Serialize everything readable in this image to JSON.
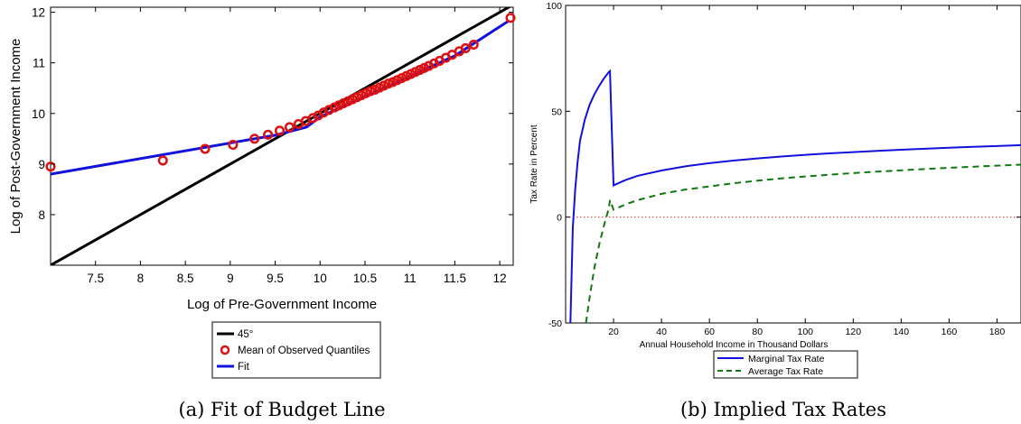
{
  "colors": {
    "black_line": "#000000",
    "marker_red": "#dd1111",
    "fit_blue": "#1111dd",
    "avg_green": "#117711",
    "zero_line": "#dd3333"
  },
  "chart_data": [
    {
      "type": "scatter",
      "caption": "(a) Fit of Budget Line",
      "xlabel": "Log of Pre-Government Income",
      "ylabel": "Log of Post-Government Income",
      "xlim": [
        7.0,
        12.15
      ],
      "ylim": [
        7.0,
        12.1
      ],
      "xticks": [
        7.5,
        8,
        8.5,
        9,
        9.5,
        10,
        10.5,
        11,
        11.5,
        12
      ],
      "yticks": [
        8,
        9,
        10,
        11,
        12
      ],
      "grid": false,
      "legend_placement": "below",
      "series": [
        {
          "name": "45°",
          "kind": "line",
          "x": [
            7.0,
            12.15
          ],
          "y": [
            7.0,
            12.15
          ]
        },
        {
          "name": "Mean of Observed Quantiles",
          "kind": "markers",
          "x": [
            7.0,
            8.25,
            8.72,
            9.03,
            9.27,
            9.42,
            9.55,
            9.66,
            9.76,
            9.84,
            9.92,
            9.98,
            10.04,
            10.1,
            10.16,
            10.21,
            10.26,
            10.31,
            10.36,
            10.41,
            10.46,
            10.51,
            10.56,
            10.61,
            10.66,
            10.71,
            10.76,
            10.81,
            10.86,
            10.91,
            10.96,
            11.01,
            11.06,
            11.11,
            11.16,
            11.21,
            11.27,
            11.33,
            11.4,
            11.47,
            11.55,
            11.62,
            11.71,
            12.12
          ],
          "y": [
            8.95,
            9.07,
            9.3,
            9.38,
            9.5,
            9.58,
            9.66,
            9.73,
            9.79,
            9.85,
            9.91,
            9.96,
            10.02,
            10.07,
            10.12,
            10.16,
            10.2,
            10.24,
            10.28,
            10.32,
            10.36,
            10.4,
            10.44,
            10.47,
            10.51,
            10.55,
            10.59,
            10.62,
            10.66,
            10.7,
            10.74,
            10.78,
            10.82,
            10.86,
            10.9,
            10.94,
            10.99,
            11.04,
            11.1,
            11.16,
            11.23,
            11.29,
            11.36,
            11.89
          ]
        },
        {
          "name": "Fit",
          "kind": "line",
          "x": [
            7.0,
            9.5,
            9.85,
            10.0,
            10.5,
            11.0,
            11.5,
            12.1
          ],
          "y": [
            8.8,
            9.57,
            9.73,
            9.93,
            10.33,
            10.74,
            11.14,
            11.83
          ]
        }
      ]
    },
    {
      "type": "line",
      "caption": "(b) Implied Tax Rates",
      "xlabel": "Annual Household Income in Thousand Dollars",
      "ylabel": "Tax Rate in Percent",
      "xlim": [
        0,
        190
      ],
      "ylim": [
        -50,
        100
      ],
      "xticks": [
        20,
        40,
        60,
        80,
        100,
        120,
        140,
        160,
        180
      ],
      "yticks": [
        -50,
        0,
        50,
        100
      ],
      "grid": false,
      "legend_placement": "below",
      "reference_line_y": 0,
      "series": [
        {
          "name": "Marginal Tax Rate",
          "style": "solid",
          "x": [
            2,
            3,
            4,
            5,
            6,
            8,
            10,
            12,
            14,
            16,
            18,
            18.5,
            20,
            25,
            30,
            40,
            50,
            60,
            70,
            80,
            90,
            100,
            110,
            120,
            130,
            140,
            150,
            160,
            170,
            180,
            190
          ],
          "y": [
            -50,
            -5,
            13,
            26,
            36,
            46,
            53,
            58,
            62,
            65.5,
            68.5,
            69,
            15,
            17.5,
            19.5,
            22,
            24,
            25.5,
            26.7,
            27.7,
            28.6,
            29.4,
            30.1,
            30.7,
            31.3,
            31.8,
            32.3,
            32.8,
            33.2,
            33.6,
            34
          ]
        },
        {
          "name": "Average Tax Rate",
          "style": "dashed",
          "x": [
            8.5,
            10,
            12,
            14,
            16,
            18,
            18.5,
            20,
            25,
            30,
            40,
            50,
            60,
            70,
            80,
            90,
            100,
            110,
            120,
            130,
            140,
            150,
            160,
            170,
            180,
            190
          ],
          "y": [
            -50,
            -38,
            -24,
            -13,
            -4,
            4,
            8,
            3.5,
            6,
            8,
            11,
            13,
            14.5,
            16,
            17.2,
            18.3,
            19.2,
            20,
            20.8,
            21.5,
            22.1,
            22.7,
            23.3,
            23.8,
            24.3,
            24.8
          ]
        }
      ]
    }
  ]
}
